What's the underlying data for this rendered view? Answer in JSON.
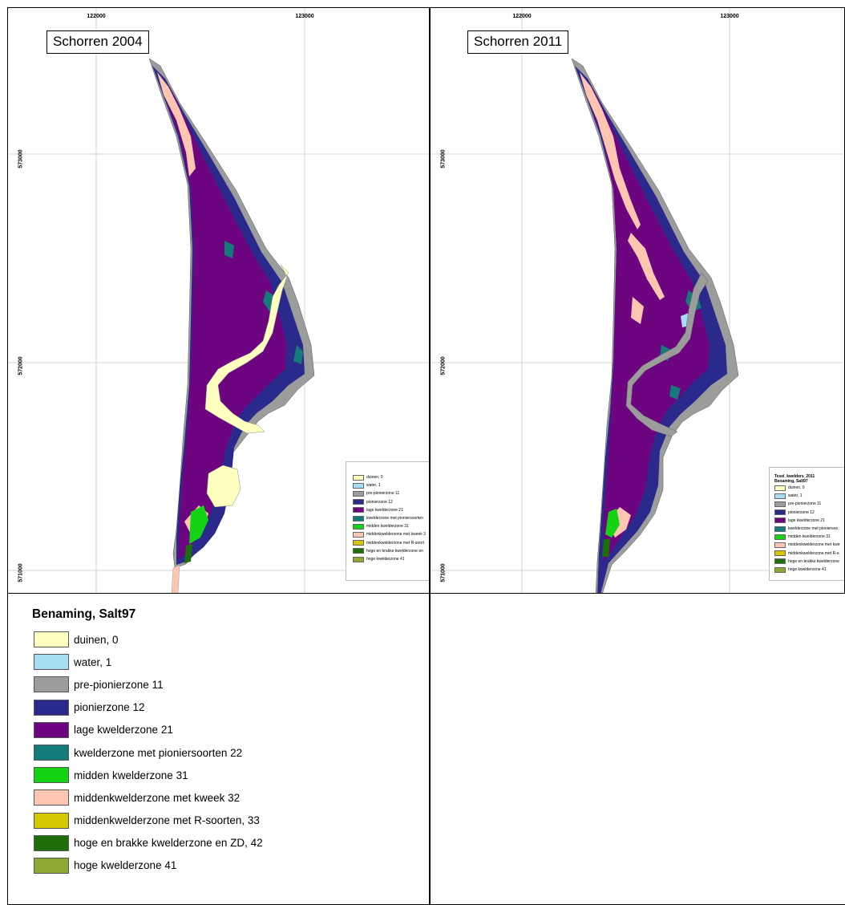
{
  "maps": [
    {
      "title": "Schorren 2004",
      "x_ticks": [
        "122000",
        "123000"
      ],
      "y_ticks": [
        "573000",
        "572000",
        "571000"
      ],
      "inset_legend": {
        "title_lines": [],
        "items": [
          "duinen, 0",
          "water, 1",
          "pre-pionierzone 11",
          "pionierzone 12",
          "lage kwelderzone 21",
          "kwelderzone met pioniersoorten",
          "midden kwelderzone 31",
          "middenkwelderzone met kweek 3",
          "middenkwelderzone met R-soort",
          "hoge en brakke kwelderzone en",
          "hoge kwelderzone 41"
        ]
      }
    },
    {
      "title": "Schorren 2011",
      "x_ticks": [
        "122000",
        "123000"
      ],
      "y_ticks": [
        "573000",
        "572000",
        "571000"
      ],
      "inset_legend": {
        "title_lines": [
          "Texel_kwelders_2011",
          "Benaming, Salt97"
        ],
        "items": [
          "duinen, 0",
          "water, 1",
          "pre-pionierzone 11",
          "pionierzone 12",
          "lage kwelderzone 21",
          "kwelderzone met pioniersoo",
          "midden kwelderzone 31",
          "middenkwelderzone met kwe",
          "middenkwelderzone met R-s",
          "hoge en brakke kwelderzone",
          "hoge kwelderzone 41"
        ]
      }
    }
  ],
  "legend": {
    "title": "Benaming, Salt97",
    "items": [
      {
        "label": "duinen, 0",
        "color": "#ffffc0"
      },
      {
        "label": "water, 1",
        "color": "#a6dcf4"
      },
      {
        "label": "pre-pionierzone 11",
        "color": "#9c9c9c"
      },
      {
        "label": "pionierzone 12",
        "color": "#2a2a8c"
      },
      {
        "label": "lage kwelderzone 21",
        "color": "#6e0580"
      },
      {
        "label": "kwelderzone met pioniersoorten 22",
        "color": "#147a7a"
      },
      {
        "label": "midden kwelderzone 31",
        "color": "#14d214"
      },
      {
        "label": "middenkwelderzone met kweek 32",
        "color": "#fcc6b0"
      },
      {
        "label": "middenkwelderzone met R-soorten, 33",
        "color": "#d6c800"
      },
      {
        "label": "hoge en brakke kwelderzone en ZD, 42",
        "color": "#1e6e0a"
      },
      {
        "label": "hoge kwelderzone 41",
        "color": "#8caa32"
      }
    ]
  }
}
